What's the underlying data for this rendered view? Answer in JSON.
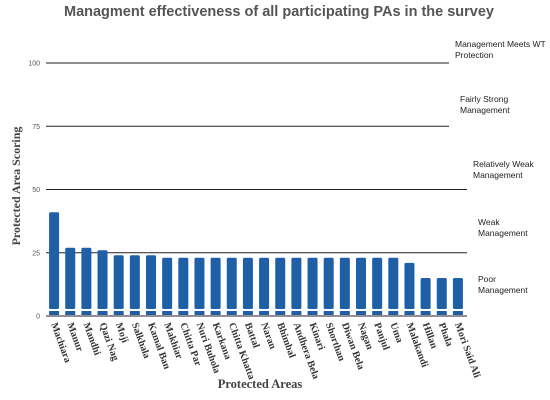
{
  "chart_data": {
    "type": "bar",
    "title": "Managment effectiveness of all participating PAs in the survey",
    "xlabel": "Protected Areas",
    "ylabel": "Protected Area Scoring",
    "ylim": [
      0,
      100
    ],
    "yticks": [
      "0",
      "25",
      "50",
      "75",
      "100"
    ],
    "bar_color": "#1f5fa6",
    "categories": [
      "Machiara",
      "Manur",
      "Mandhi",
      "Qazi Nag",
      "Moji",
      "Salkhala",
      "Kamal Ban",
      "Makhiar",
      "Chitta Par",
      "Nuri Buhola",
      "Karkana",
      "Chitta Khatta",
      "Battal",
      "Naran",
      "Bhimbal",
      "Andhera Bela",
      "Kinari",
      "Shorthan",
      "Diwan Bela",
      "Nagan",
      "Panjul",
      "Uma",
      "Malakandi",
      "Hillan",
      "Phala",
      "Mori Said Ali"
    ],
    "values": [
      41,
      27,
      27,
      26,
      24,
      24,
      24,
      23,
      23,
      23,
      23,
      23,
      23,
      23,
      23,
      23,
      23,
      23,
      23,
      23,
      23,
      23,
      21,
      15,
      15,
      15
    ],
    "reference_lines": [
      {
        "value": 100,
        "label_lines": [
          "Management Meets WT",
          "Protection"
        ]
      },
      {
        "value": 75,
        "label_lines": [
          "Fairly Strong",
          "Management"
        ]
      },
      {
        "value": 50,
        "label_lines": [
          "Relatively Weak",
          "Management"
        ]
      },
      {
        "value": 25,
        "label_lines": [
          "Weak",
          "Management"
        ]
      },
      {
        "value": 0,
        "label_lines": [
          "Poor",
          "Management"
        ]
      }
    ]
  }
}
